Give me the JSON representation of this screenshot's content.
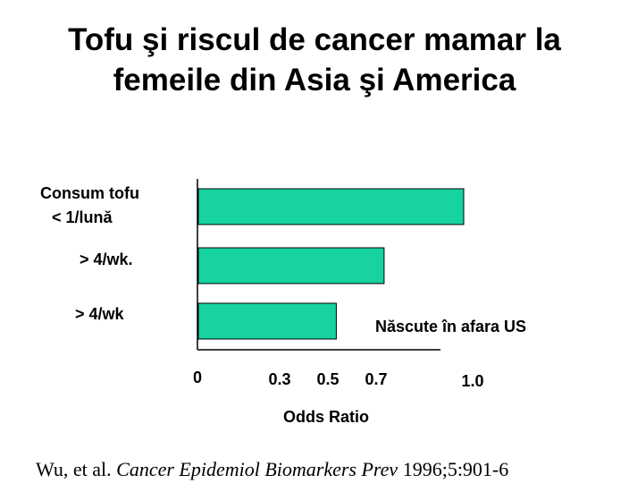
{
  "title_line1": "Tofu şi riscul de cancer mamar la",
  "title_line2": "femeile din Asia şi America",
  "citation": {
    "authors": "Wu, et al. ",
    "journal": "Cancer Epidemiol Biomarkers Prev",
    "ref": " 1996;5:901-6"
  },
  "colors": {
    "bar": "#16d3a1",
    "axis": "#000000"
  },
  "chart_data": {
    "type": "bar",
    "orientation": "horizontal",
    "categories": [
      {
        "line1": "Consum tofu",
        "line2": "< 1/lună"
      },
      {
        "line1": "> 4/wk.",
        "line2": ""
      },
      {
        "line1": "> 4/wk",
        "line2": ""
      }
    ],
    "values": [
      1.0,
      0.7,
      0.52
    ],
    "xlabel": "Odds Ratio",
    "ticks": [
      {
        "value": 0,
        "label": "0"
      },
      {
        "value": 0.3,
        "label": "0.3"
      },
      {
        "value": 0.5,
        "label": "0.5"
      },
      {
        "value": 0.7,
        "label": "0.7"
      },
      {
        "value": 1.0,
        "label": "1.0"
      }
    ],
    "xlim": [
      0,
      1.0
    ],
    "annotation": "Născute în afara US",
    "grid": false
  }
}
